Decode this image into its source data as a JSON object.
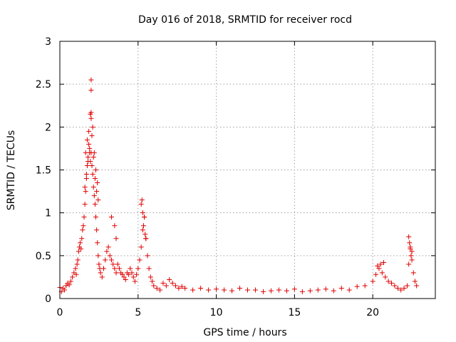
{
  "chart_data": {
    "type": "scatter",
    "title": "Day 016 of 2018, SRMTID for receiver rocd",
    "xlabel": "GPS time / hours",
    "ylabel": "SRMTID / TECUs",
    "xlim": [
      0,
      24
    ],
    "ylim": [
      0,
      3
    ],
    "xticks": [
      0,
      5,
      10,
      15,
      20
    ],
    "xtick_labels": [
      "0",
      "5",
      "10",
      "15",
      "20"
    ],
    "yticks": [
      0,
      0.5,
      1,
      1.5,
      2,
      2.5,
      3
    ],
    "ytick_labels": [
      "0",
      "0.5",
      "1",
      "1.5",
      "2",
      "2.5",
      "3"
    ],
    "grid": true,
    "marker": "+",
    "color": "#e00000",
    "series": [
      {
        "name": "SRMTID",
        "x": [
          0.0,
          0.1,
          0.2,
          0.3,
          0.4,
          0.5,
          0.6,
          0.7,
          0.8,
          0.9,
          1.0,
          1.05,
          1.1,
          1.15,
          1.2,
          1.25,
          1.3,
          1.35,
          1.4,
          1.45,
          1.5,
          1.55,
          1.6,
          1.65,
          1.7,
          1.75,
          1.8,
          1.85,
          1.9,
          1.95,
          2.0,
          2.05,
          2.1,
          2.15,
          2.2,
          2.25,
          2.3,
          2.35,
          2.4,
          2.45,
          2.5,
          2.55,
          2.6,
          2.7,
          2.8,
          2.9,
          3.0,
          3.1,
          3.2,
          3.3,
          3.4,
          3.5,
          3.6,
          3.7,
          3.8,
          3.9,
          4.0,
          4.1,
          4.2,
          4.3,
          4.4,
          4.5,
          4.6,
          4.7,
          4.8,
          4.9,
          5.0,
          5.1,
          5.2,
          5.3,
          5.4,
          5.5,
          5.6,
          5.7,
          5.8,
          5.9,
          6.0,
          6.2,
          6.4,
          6.6,
          6.8,
          7.0,
          7.2,
          7.4,
          7.6,
          7.8,
          8.0,
          8.5,
          9.0,
          9.5,
          10.0,
          10.5,
          11.0,
          11.5,
          12.0,
          12.5,
          13.0,
          13.5,
          14.0,
          14.5,
          15.0,
          15.5,
          16.0,
          16.5,
          17.0,
          17.5,
          18.0,
          18.5,
          19.0,
          19.5,
          20.0,
          20.2,
          20.4,
          20.6,
          20.8,
          21.0,
          21.2,
          21.4,
          21.6,
          21.8,
          22.0,
          22.2,
          22.3,
          22.4,
          22.5,
          22.6,
          22.7,
          22.8,
          1.6,
          1.7,
          1.8,
          1.9,
          2.0,
          2.1,
          2.2,
          2.3,
          2.4,
          1.75,
          1.85,
          1.95,
          2.05,
          2.15,
          2.25,
          2.35,
          2.45,
          1.65,
          2.0,
          2.0,
          2.0,
          5.25,
          5.3,
          5.35,
          5.4,
          5.2,
          5.45,
          5.5,
          3.3,
          3.5,
          3.6,
          22.3,
          22.35,
          22.4,
          22.45,
          22.5,
          20.3,
          20.5,
          20.7
        ],
        "y": [
          0.13,
          0.08,
          0.12,
          0.1,
          0.15,
          0.18,
          0.16,
          0.2,
          0.25,
          0.3,
          0.35,
          0.28,
          0.4,
          0.45,
          0.55,
          0.6,
          0.65,
          0.58,
          0.7,
          0.8,
          0.85,
          0.95,
          1.1,
          1.25,
          1.4,
          1.55,
          1.65,
          1.8,
          1.75,
          1.6,
          1.7,
          1.55,
          1.45,
          1.3,
          1.2,
          1.1,
          0.95,
          0.8,
          0.65,
          0.5,
          0.4,
          0.35,
          0.3,
          0.25,
          0.35,
          0.45,
          0.55,
          0.6,
          0.5,
          0.45,
          0.4,
          0.35,
          0.3,
          0.4,
          0.35,
          0.3,
          0.28,
          0.25,
          0.22,
          0.3,
          0.28,
          0.35,
          0.3,
          0.25,
          0.2,
          0.28,
          0.35,
          0.45,
          0.6,
          0.8,
          0.95,
          0.7,
          0.5,
          0.35,
          0.25,
          0.2,
          0.15,
          0.12,
          0.1,
          0.18,
          0.15,
          0.22,
          0.18,
          0.15,
          0.12,
          0.14,
          0.12,
          0.1,
          0.12,
          0.1,
          0.11,
          0.1,
          0.09,
          0.12,
          0.1,
          0.1,
          0.08,
          0.09,
          0.1,
          0.09,
          0.11,
          0.08,
          0.09,
          0.1,
          0.11,
          0.09,
          0.12,
          0.1,
          0.14,
          0.15,
          0.2,
          0.28,
          0.35,
          0.3,
          0.25,
          0.2,
          0.18,
          0.15,
          0.12,
          0.1,
          0.12,
          0.15,
          0.4,
          0.6,
          0.55,
          0.3,
          0.2,
          0.15,
          1.3,
          1.45,
          1.6,
          1.7,
          2.1,
          2.0,
          1.7,
          1.5,
          1.35,
          1.85,
          1.95,
          2.15,
          1.9,
          1.65,
          1.4,
          1.25,
          1.15,
          1.7,
          2.55,
          2.43,
          2.17,
          1.15,
          1.0,
          0.85,
          0.95,
          1.1,
          0.75,
          0.7,
          0.95,
          0.85,
          0.7,
          0.72,
          0.65,
          0.58,
          0.5,
          0.45,
          0.38,
          0.4,
          0.42
        ]
      }
    ]
  }
}
